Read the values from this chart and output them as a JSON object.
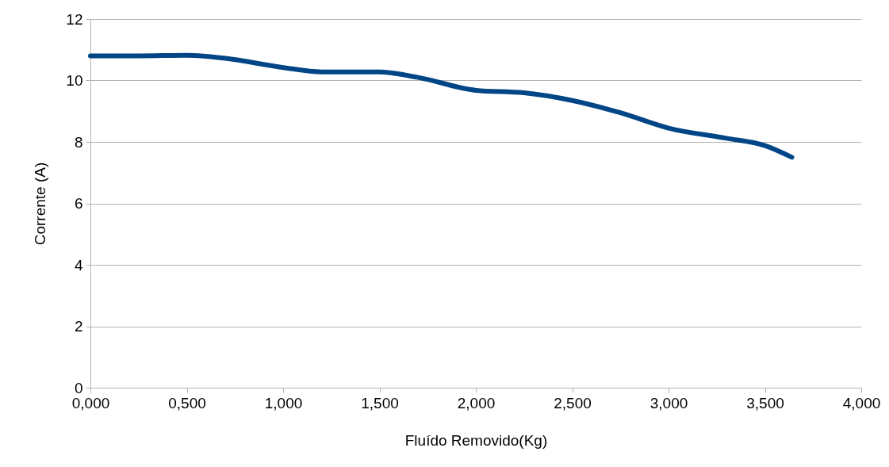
{
  "chart_data": {
    "type": "line",
    "xlabel": "Fluído Removido(Kg)",
    "ylabel": "Corrente (A)",
    "x": [
      0,
      0.25,
      0.5,
      0.7,
      1.0,
      1.2,
      1.5,
      1.7,
      2.0,
      2.25,
      2.5,
      2.75,
      3.0,
      3.3,
      3.5,
      3.64
    ],
    "series": [
      {
        "color": "#004586",
        "values": [
          10.8,
          10.8,
          10.82,
          10.72,
          10.42,
          10.28,
          10.28,
          10.1,
          9.68,
          9.6,
          9.35,
          8.95,
          8.45,
          8.12,
          7.88,
          7.5
        ]
      }
    ],
    "xlim": [
      0,
      4
    ],
    "xticks": [
      {
        "value": 0,
        "label": "0,000"
      },
      {
        "value": 0.5,
        "label": "0,500"
      },
      {
        "value": 1,
        "label": "1,000"
      },
      {
        "value": 1.5,
        "label": "1,500"
      },
      {
        "value": 2,
        "label": "2,000"
      },
      {
        "value": 2.5,
        "label": "2,500"
      },
      {
        "value": 3,
        "label": "3,000"
      },
      {
        "value": 3.5,
        "label": "3,500"
      },
      {
        "value": 4,
        "label": "4,000"
      }
    ],
    "ylim": [
      0,
      12
    ],
    "yticks": [
      0,
      2,
      4,
      6,
      8,
      10,
      12
    ],
    "grid": "y",
    "marker": "none",
    "line_style": "solid"
  }
}
